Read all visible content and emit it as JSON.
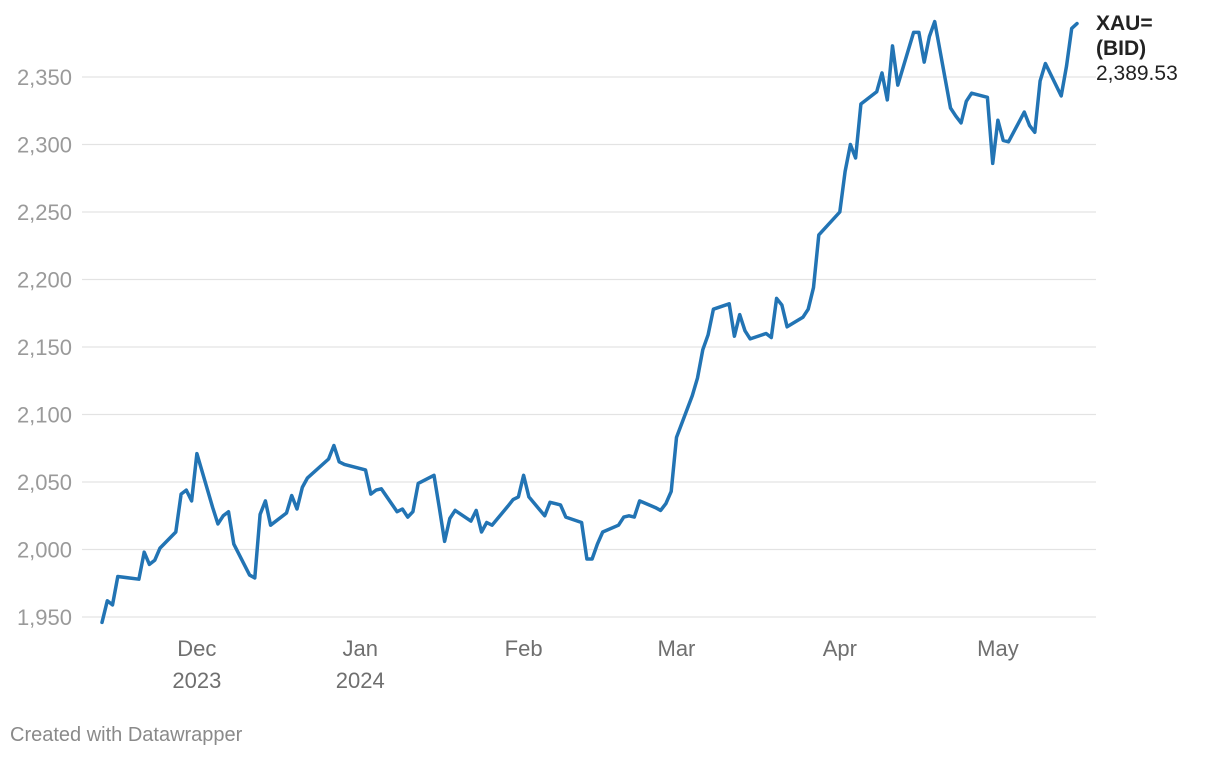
{
  "chart_data": {
    "type": "line",
    "title": "",
    "xlabel": "",
    "ylabel": "",
    "ylim": [
      1940,
      2400
    ],
    "xlim": [
      "2023-11-13",
      "2024-05-20"
    ],
    "grid": true,
    "y_ticks": [
      1950,
      2000,
      2050,
      2100,
      2150,
      2200,
      2250,
      2300,
      2350
    ],
    "y_tick_labels": [
      "1,950",
      "2,000",
      "2,050",
      "2,100",
      "2,150",
      "2,200",
      "2,250",
      "2,300",
      "2,350"
    ],
    "x_ticks": [
      {
        "date": "2023-12-01",
        "lines": [
          "Dec",
          "2023"
        ]
      },
      {
        "date": "2024-01-01",
        "lines": [
          "Jan",
          "2024"
        ]
      },
      {
        "date": "2024-02-01",
        "lines": [
          "Feb"
        ]
      },
      {
        "date": "2024-03-01",
        "lines": [
          "Mar"
        ]
      },
      {
        "date": "2024-04-01",
        "lines": [
          "Apr"
        ]
      },
      {
        "date": "2024-05-01",
        "lines": [
          "May"
        ]
      }
    ],
    "series": [
      {
        "name": "XAU= (BID)",
        "name_lines": [
          "XAU=",
          "(BID)"
        ],
        "last_value_label": "2,389.53",
        "color": "#2274b4",
        "points": [
          [
            "2023-11-13",
            1946
          ],
          [
            "2023-11-14",
            1962
          ],
          [
            "2023-11-15",
            1959
          ],
          [
            "2023-11-16",
            1980
          ],
          [
            "2023-11-20",
            1978
          ],
          [
            "2023-11-21",
            1998
          ],
          [
            "2023-11-22",
            1989
          ],
          [
            "2023-11-23",
            1992
          ],
          [
            "2023-11-24",
            2001
          ],
          [
            "2023-11-27",
            2013
          ],
          [
            "2023-11-28",
            2041
          ],
          [
            "2023-11-29",
            2044
          ],
          [
            "2023-11-30",
            2036
          ],
          [
            "2023-12-01",
            2071
          ],
          [
            "2023-12-04",
            2031
          ],
          [
            "2023-12-05",
            2019
          ],
          [
            "2023-12-06",
            2025
          ],
          [
            "2023-12-07",
            2028
          ],
          [
            "2023-12-08",
            2004
          ],
          [
            "2023-12-11",
            1981
          ],
          [
            "2023-12-12",
            1979
          ],
          [
            "2023-12-13",
            2026
          ],
          [
            "2023-12-14",
            2036
          ],
          [
            "2023-12-15",
            2018
          ],
          [
            "2023-12-18",
            2027
          ],
          [
            "2023-12-19",
            2040
          ],
          [
            "2023-12-20",
            2030
          ],
          [
            "2023-12-21",
            2046
          ],
          [
            "2023-12-22",
            2053
          ],
          [
            "2023-12-26",
            2067
          ],
          [
            "2023-12-27",
            2077
          ],
          [
            "2023-12-28",
            2065
          ],
          [
            "2023-12-29",
            2063
          ],
          [
            "2024-01-02",
            2059
          ],
          [
            "2024-01-03",
            2041
          ],
          [
            "2024-01-04",
            2044
          ],
          [
            "2024-01-05",
            2045
          ],
          [
            "2024-01-08",
            2028
          ],
          [
            "2024-01-09",
            2030
          ],
          [
            "2024-01-10",
            2024
          ],
          [
            "2024-01-11",
            2028
          ],
          [
            "2024-01-12",
            2049
          ],
          [
            "2024-01-15",
            2055
          ],
          [
            "2024-01-16",
            2031
          ],
          [
            "2024-01-17",
            2006
          ],
          [
            "2024-01-18",
            2023
          ],
          [
            "2024-01-19",
            2029
          ],
          [
            "2024-01-22",
            2021
          ],
          [
            "2024-01-23",
            2029
          ],
          [
            "2024-01-24",
            2013
          ],
          [
            "2024-01-25",
            2020
          ],
          [
            "2024-01-26",
            2018
          ],
          [
            "2024-01-29",
            2032
          ],
          [
            "2024-01-30",
            2037
          ],
          [
            "2024-01-31",
            2039
          ],
          [
            "2024-02-01",
            2055
          ],
          [
            "2024-02-02",
            2039
          ],
          [
            "2024-02-05",
            2025
          ],
          [
            "2024-02-06",
            2035
          ],
          [
            "2024-02-07",
            2034
          ],
          [
            "2024-02-08",
            2033
          ],
          [
            "2024-02-09",
            2024
          ],
          [
            "2024-02-12",
            2020
          ],
          [
            "2024-02-13",
            1993
          ],
          [
            "2024-02-14",
            1993
          ],
          [
            "2024-02-15",
            2004
          ],
          [
            "2024-02-16",
            2013
          ],
          [
            "2024-02-19",
            2018
          ],
          [
            "2024-02-20",
            2024
          ],
          [
            "2024-02-21",
            2025
          ],
          [
            "2024-02-22",
            2024
          ],
          [
            "2024-02-23",
            2036
          ],
          [
            "2024-02-26",
            2031
          ],
          [
            "2024-02-27",
            2029
          ],
          [
            "2024-02-28",
            2034
          ],
          [
            "2024-02-29",
            2043
          ],
          [
            "2024-03-01",
            2083
          ],
          [
            "2024-03-04",
            2114
          ],
          [
            "2024-03-05",
            2127
          ],
          [
            "2024-03-06",
            2148
          ],
          [
            "2024-03-07",
            2159
          ],
          [
            "2024-03-08",
            2178
          ],
          [
            "2024-03-11",
            2182
          ],
          [
            "2024-03-12",
            2158
          ],
          [
            "2024-03-13",
            2174
          ],
          [
            "2024-03-14",
            2162
          ],
          [
            "2024-03-15",
            2156
          ],
          [
            "2024-03-18",
            2160
          ],
          [
            "2024-03-19",
            2157
          ],
          [
            "2024-03-20",
            2186
          ],
          [
            "2024-03-21",
            2181
          ],
          [
            "2024-03-22",
            2165
          ],
          [
            "2024-03-25",
            2172
          ],
          [
            "2024-03-26",
            2178
          ],
          [
            "2024-03-27",
            2194
          ],
          [
            "2024-03-28",
            2233
          ],
          [
            "2024-04-01",
            2250
          ],
          [
            "2024-04-02",
            2280
          ],
          [
            "2024-04-03",
            2300
          ],
          [
            "2024-04-04",
            2290
          ],
          [
            "2024-04-05",
            2330
          ],
          [
            "2024-04-08",
            2339
          ],
          [
            "2024-04-09",
            2353
          ],
          [
            "2024-04-10",
            2333
          ],
          [
            "2024-04-11",
            2373
          ],
          [
            "2024-04-12",
            2344
          ],
          [
            "2024-04-15",
            2383
          ],
          [
            "2024-04-16",
            2383
          ],
          [
            "2024-04-17",
            2361
          ],
          [
            "2024-04-18",
            2380
          ],
          [
            "2024-04-19",
            2391
          ],
          [
            "2024-04-22",
            2327
          ],
          [
            "2024-04-23",
            2321
          ],
          [
            "2024-04-24",
            2316
          ],
          [
            "2024-04-25",
            2332
          ],
          [
            "2024-04-26",
            2338
          ],
          [
            "2024-04-29",
            2335
          ],
          [
            "2024-04-30",
            2286
          ],
          [
            "2024-05-01",
            2318
          ],
          [
            "2024-05-02",
            2303
          ],
          [
            "2024-05-03",
            2302
          ],
          [
            "2024-05-06",
            2324
          ],
          [
            "2024-05-07",
            2314
          ],
          [
            "2024-05-08",
            2309
          ],
          [
            "2024-05-09",
            2347
          ],
          [
            "2024-05-10",
            2360
          ],
          [
            "2024-05-13",
            2336
          ],
          [
            "2024-05-14",
            2358
          ],
          [
            "2024-05-15",
            2386
          ],
          [
            "2024-05-16",
            2389.53
          ]
        ]
      }
    ]
  },
  "footer": {
    "credit": "Created with Datawrapper"
  },
  "colors": {
    "line": "#2274b4",
    "grid": "#e3e3e3",
    "y_tick_text": "#9a9a9a",
    "x_tick_text": "#6f6f6f",
    "label_text": "#222222",
    "footer_text": "#8a8a8a"
  }
}
